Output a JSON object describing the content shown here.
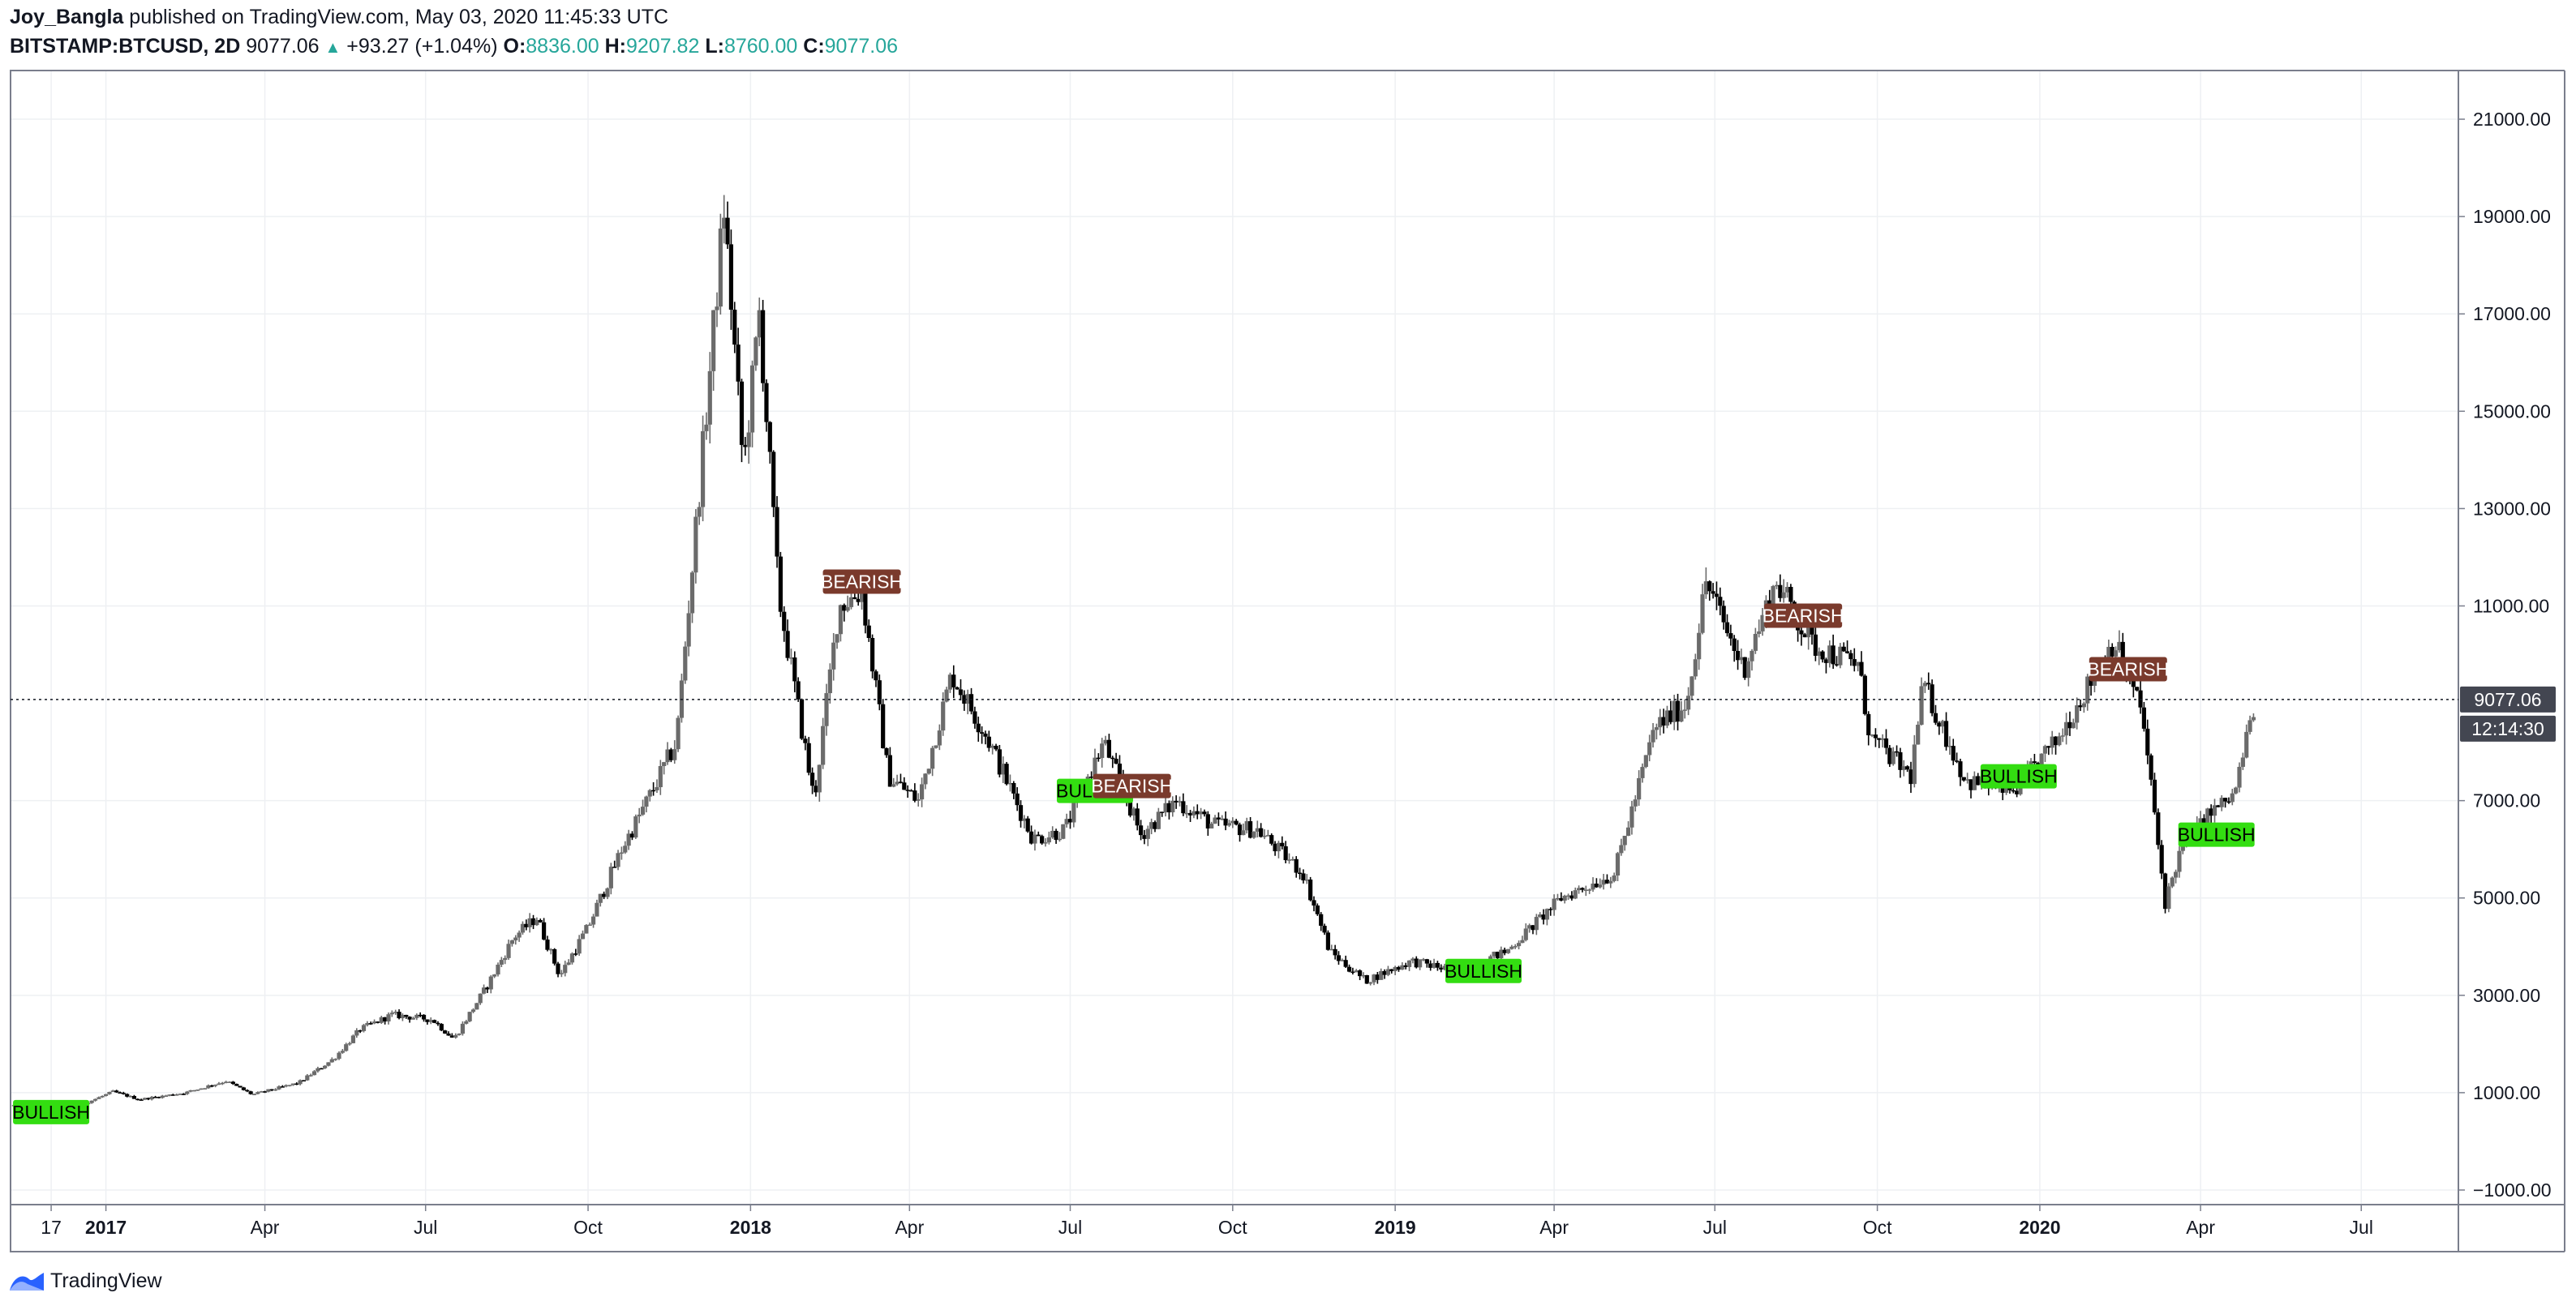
{
  "header": {
    "author": "Joy_Bangla",
    "published": "published on TradingView.com, May 03, 2020 11:45:33 UTC",
    "symbol": "BITSTAMP:BTCUSD, 2D",
    "last": "9077.06",
    "change": "+93.27 (+1.04%)",
    "o_label": "O:",
    "o_value": "8836.00",
    "h_label": "H:",
    "h_value": "9207.82",
    "l_label": "L:",
    "l_value": "8760.00",
    "c_label": "C:",
    "c_value": "9077.06"
  },
  "price_axis": {
    "ticks": [
      "21000.00",
      "19000.00",
      "17000.00",
      "15000.00",
      "13000.00",
      "11000.00",
      "7000.00",
      "5000.00",
      "3000.00",
      "1000.00",
      "−1000.00"
    ],
    "current_price": "9077.06",
    "countdown": "12:14:30"
  },
  "time_axis": {
    "ticks": [
      {
        "label": "17",
        "bold": false
      },
      {
        "label": "2017",
        "bold": true
      },
      {
        "label": "Apr",
        "bold": false
      },
      {
        "label": "Jul",
        "bold": false
      },
      {
        "label": "Oct",
        "bold": false
      },
      {
        "label": "2018",
        "bold": true
      },
      {
        "label": "Apr",
        "bold": false
      },
      {
        "label": "Jul",
        "bold": false
      },
      {
        "label": "Oct",
        "bold": false
      },
      {
        "label": "2019",
        "bold": true
      },
      {
        "label": "Apr",
        "bold": false
      },
      {
        "label": "Jul",
        "bold": false
      },
      {
        "label": "Oct",
        "bold": false
      },
      {
        "label": "2020",
        "bold": true
      },
      {
        "label": "Apr",
        "bold": false
      },
      {
        "label": "Jul",
        "bold": false
      }
    ]
  },
  "colors": {
    "candle_up": "#6b6b6b",
    "candle_down": "#000000",
    "bullish_bg": "#33dd11",
    "bearish_bg": "#7a3a2c",
    "price_tag_bg": "#434651",
    "grid": "#eef0f3"
  },
  "brand": {
    "name": "TradingView",
    "icon": "tradingview-logo-icon"
  },
  "chart_data": {
    "type": "candlestick",
    "ylim": [
      -1300,
      22000
    ],
    "grid": true,
    "series": [
      {
        "x": [
          "2016-11-20",
          "2016-12-20",
          "2017-01-05",
          "2017-01-20",
          "2017-02-15",
          "2017-03-10",
          "2017-03-25",
          "2017-04-20",
          "2017-05-10",
          "2017-05-25",
          "2017-06-12",
          "2017-07-05",
          "2017-07-17",
          "2017-08-05",
          "2017-08-20",
          "2017-09-02",
          "2017-09-15",
          "2017-10-01",
          "2017-10-20",
          "2017-11-05",
          "2017-11-20",
          "2017-12-07",
          "2017-12-17",
          "2017-12-28",
          "2018-01-06",
          "2018-01-17",
          "2018-02-06",
          "2018-02-20",
          "2018-03-05",
          "2018-03-20",
          "2018-04-06",
          "2018-04-25",
          "2018-05-15",
          "2018-06-10",
          "2018-06-28",
          "2018-07-20",
          "2018-08-10",
          "2018-08-30",
          "2018-09-20",
          "2018-10-15",
          "2018-11-10",
          "2018-11-25",
          "2018-12-15",
          "2019-01-10",
          "2019-02-05",
          "2019-03-05",
          "2019-04-05",
          "2019-05-05",
          "2019-05-28",
          "2019-06-15",
          "2019-06-26",
          "2019-07-17",
          "2019-08-05",
          "2019-08-25",
          "2019-09-20",
          "2019-09-27",
          "2019-10-20",
          "2019-10-27",
          "2019-11-20",
          "2019-12-17",
          "2020-01-10",
          "2020-02-12",
          "2020-02-28",
          "2020-03-12",
          "2020-03-20",
          "2020-04-05",
          "2020-04-20",
          "2020-05-02"
        ],
        "close": [
          740,
          780,
          1020,
          860,
          1000,
          1240,
          960,
          1200,
          1700,
          2300,
          2600,
          2500,
          2100,
          3200,
          4200,
          4600,
          3400,
          4400,
          6000,
          7100,
          8200,
          15000,
          19200,
          13800,
          17000,
          11200,
          7000,
          11000,
          11300,
          7500,
          7000,
          9600,
          8300,
          6200,
          6400,
          8200,
          6300,
          7000,
          6500,
          6400,
          5500,
          3900,
          3300,
          3700,
          3500,
          3900,
          5000,
          5500,
          8500,
          9000,
          11500,
          9700,
          11500,
          10200,
          9800,
          8300,
          7500,
          9400,
          7400,
          7200,
          8200,
          10300,
          8800,
          4900,
          5900,
          6700,
          7100,
          9077
        ]
      }
    ],
    "annotations": [
      {
        "label": "BULLISH",
        "date": "2016-12-01",
        "price": 600
      },
      {
        "label": "BEARISH",
        "date": "2018-03-05",
        "price": 11500
      },
      {
        "label": "BULLISH",
        "date": "2018-07-15",
        "price": 7200
      },
      {
        "label": "BEARISH",
        "date": "2018-08-05",
        "price": 7300
      },
      {
        "label": "BULLISH",
        "date": "2019-02-20",
        "price": 3500
      },
      {
        "label": "BEARISH",
        "date": "2019-08-20",
        "price": 10800
      },
      {
        "label": "BULLISH",
        "date": "2019-12-20",
        "price": 7500
      },
      {
        "label": "BEARISH",
        "date": "2020-02-20",
        "price": 9700
      },
      {
        "label": "BULLISH",
        "date": "2020-04-10",
        "price": 6300
      }
    ]
  }
}
